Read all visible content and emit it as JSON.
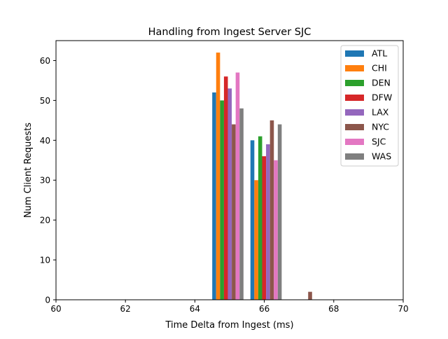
{
  "chart_data": {
    "type": "bar",
    "title": "Handling from Ingest Server SJC",
    "xlabel": "Time Delta from Ingest (ms)",
    "ylabel": "Num Client Requests",
    "xlim": [
      60,
      70
    ],
    "ylim": [
      0,
      65
    ],
    "xticks": [
      60,
      62,
      64,
      66,
      68,
      70
    ],
    "yticks": [
      0,
      10,
      20,
      30,
      40,
      50,
      60
    ],
    "grid": false,
    "legend_position": "top-right",
    "bin_width": 0.9,
    "bin_starts": [
      64.5,
      65.6,
      66.7
    ],
    "series": [
      {
        "name": "ATL",
        "color": "#1f77b4",
        "values": [
          52,
          40,
          0
        ]
      },
      {
        "name": "CHI",
        "color": "#ff7f0e",
        "values": [
          62,
          30,
          0
        ]
      },
      {
        "name": "DEN",
        "color": "#2ca02c",
        "values": [
          50,
          41,
          0
        ]
      },
      {
        "name": "DFW",
        "color": "#d62728",
        "values": [
          56,
          36,
          0
        ]
      },
      {
        "name": "LAX",
        "color": "#9467bd",
        "values": [
          53,
          39,
          0
        ]
      },
      {
        "name": "NYC",
        "color": "#8c564b",
        "values": [
          44,
          45,
          2
        ]
      },
      {
        "name": "SJC",
        "color": "#e377c2",
        "values": [
          57,
          35,
          0
        ]
      },
      {
        "name": "WAS",
        "color": "#7f7f7f",
        "values": [
          48,
          44,
          0
        ]
      }
    ]
  }
}
